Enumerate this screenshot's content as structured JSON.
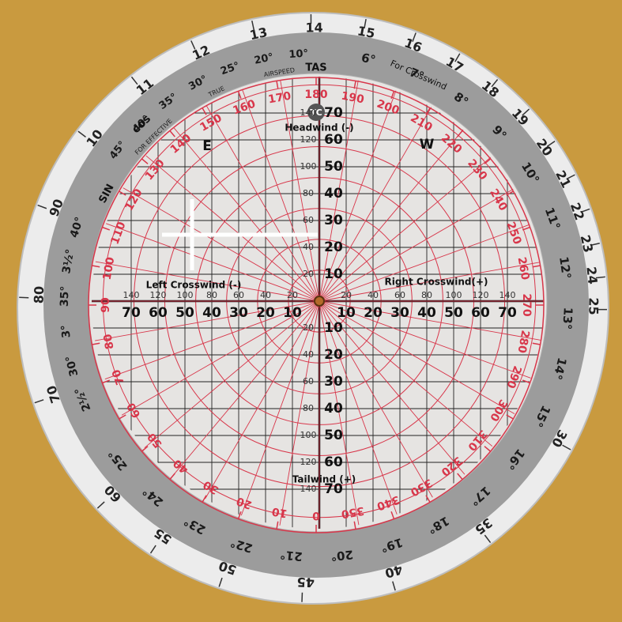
{
  "outer_scale": {
    "values": [
      10,
      11,
      12,
      13,
      14,
      15,
      16,
      17,
      18,
      19,
      20,
      21,
      22,
      23,
      24,
      25,
      30,
      35,
      40,
      45,
      50,
      55,
      60,
      70,
      80,
      90
    ]
  },
  "gray_ring": {
    "right_arc": [
      "6°",
      "7°",
      "8°",
      "9°",
      "10°",
      "11°",
      "12°",
      "13°",
      "14°",
      "15°",
      "16°",
      "17°",
      "18°",
      "19°",
      "20°",
      "21°",
      "22°",
      "23°",
      "24°",
      "25°"
    ],
    "upper_arc": [
      "45°",
      "40°",
      "35°",
      "30°",
      "25°",
      "20°",
      "10°"
    ],
    "left_arc": [
      "40°",
      "3½°",
      "35°",
      "3°",
      "30°",
      "2½°"
    ],
    "tas": "TAS",
    "crosswind": "For Crosswind",
    "airspeed": "AIRSPEED",
    "true": "TRUE",
    "sin": "SIN",
    "cos": "cos",
    "effective": "FOR EFFECTIVE"
  },
  "compass": {
    "values": [
      0,
      10,
      20,
      30,
      40,
      50,
      60,
      70,
      80,
      90,
      100,
      110,
      120,
      130,
      140,
      150,
      160,
      170,
      180,
      190,
      200,
      210,
      220,
      230,
      240,
      250,
      260,
      270,
      280,
      290,
      300,
      310,
      320,
      330,
      340,
      350
    ],
    "course_label": "TC"
  },
  "grid": {
    "major": [
      10,
      20,
      30,
      40,
      50,
      60,
      70
    ],
    "minor": [
      20,
      40,
      60,
      80,
      100,
      120,
      140
    ],
    "headwind": "Headwind (-)",
    "tailwind": "Tailwind (+)",
    "left": "Left Crosswind (-)",
    "right": "Right Crosswind(+)",
    "east": "E",
    "west": "W"
  }
}
